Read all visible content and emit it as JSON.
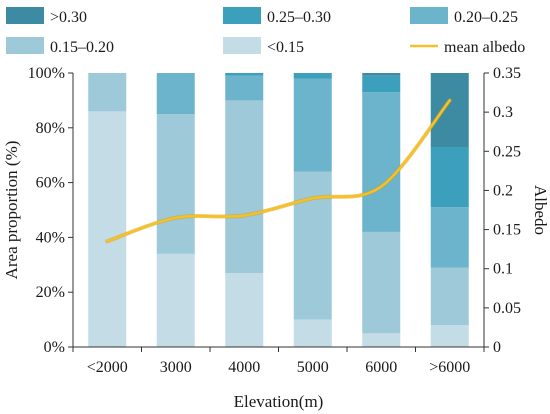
{
  "chart_data": {
    "type": "bar",
    "stacked": true,
    "percent_scale": true,
    "categories": [
      "<2000",
      "3000",
      "4000",
      "5000",
      "6000",
      ">6000"
    ],
    "series": [
      {
        "name": "<0.15",
        "color": "#c4dce6",
        "values": [
          86,
          34,
          27,
          10,
          5,
          8
        ]
      },
      {
        "name": "0.15–0.20",
        "color": "#9ec9d9",
        "values": [
          14,
          51,
          63,
          54,
          37,
          21
        ]
      },
      {
        "name": "0.20–0.25",
        "color": "#6cb3cc",
        "values": [
          0,
          15,
          9,
          34,
          51,
          22
        ]
      },
      {
        "name": "0.25–0.30",
        "color": "#3c9fbc",
        "values": [
          0,
          0,
          1,
          2,
          6,
          22
        ]
      },
      {
        "name": ">0.30",
        "color": "#3d8aa3",
        "values": [
          0,
          0,
          0,
          0,
          1,
          27
        ]
      }
    ],
    "line": {
      "name": "mean albedo",
      "color": "#f5c02c",
      "values": [
        0.135,
        0.165,
        0.168,
        0.19,
        0.205,
        0.315
      ]
    },
    "xlabel": "Elevation(m)",
    "ylabel": "Area proportion  (%)",
    "y2label": "Albedo",
    "ylim": [
      0,
      100
    ],
    "y2lim": [
      0,
      0.35
    ],
    "yticks": [
      "0%",
      "20%",
      "40%",
      "60%",
      "80%",
      "100%"
    ],
    "y2ticks": [
      "0",
      "0.05",
      "0.1",
      "0.15",
      "0.2",
      "0.25",
      "0.3",
      "0.35"
    ],
    "legend_position": "top",
    "legend_order": [
      ">0.30",
      "0.25–0.30",
      "0.20–0.25",
      "0.15–0.20",
      "<0.15",
      "mean albedo"
    ],
    "grid": false
  }
}
